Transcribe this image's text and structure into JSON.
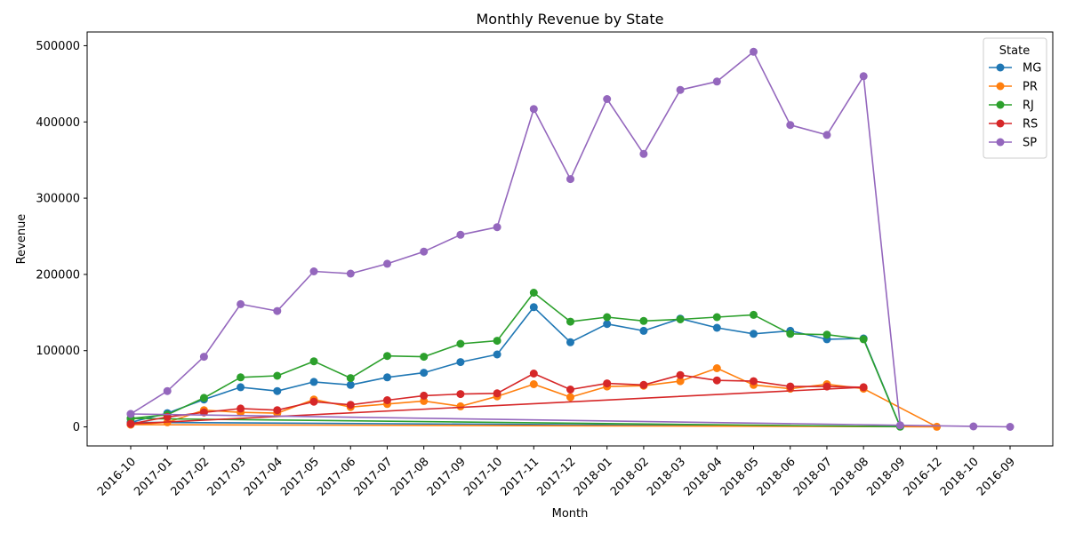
{
  "chart_data": {
    "type": "line",
    "title": "Monthly Revenue by State",
    "xlabel": "Month",
    "ylabel": "Revenue",
    "ylim": [
      -25000,
      518000
    ],
    "yticks": [
      0,
      100000,
      200000,
      300000,
      400000,
      500000
    ],
    "grid": false,
    "legend": {
      "title": "State",
      "position": "top-right"
    },
    "categories": [
      "2016-10",
      "2017-01",
      "2017-02",
      "2017-03",
      "2017-04",
      "2017-05",
      "2017-06",
      "2017-07",
      "2017-08",
      "2017-09",
      "2017-10",
      "2017-11",
      "2017-12",
      "2018-01",
      "2018-02",
      "2018-03",
      "2018-04",
      "2018-05",
      "2018-06",
      "2018-07",
      "2018-08",
      "2018-09",
      "2016-12",
      "2018-10",
      "2016-09"
    ],
    "series": [
      {
        "name": "MG",
        "color": "#1f77b4",
        "points": [
          [
            "2016-10",
            6000
          ],
          [
            "2017-01",
            18000
          ],
          [
            "2017-02",
            36000
          ],
          [
            "2017-03",
            52000
          ],
          [
            "2017-04",
            47000
          ],
          [
            "2017-05",
            59000
          ],
          [
            "2017-06",
            55000
          ],
          [
            "2017-07",
            65000
          ],
          [
            "2017-08",
            71000
          ],
          [
            "2017-09",
            85000
          ],
          [
            "2017-10",
            95000
          ],
          [
            "2017-11",
            157000
          ],
          [
            "2017-12",
            111000
          ],
          [
            "2018-01",
            135000
          ],
          [
            "2018-02",
            126000
          ],
          [
            "2018-03",
            142000
          ],
          [
            "2018-04",
            130000
          ],
          [
            "2018-05",
            122000
          ],
          [
            "2018-06",
            126000
          ],
          [
            "2018-07",
            115000
          ],
          [
            "2018-08",
            116000
          ],
          [
            "2018-09",
            500
          ],
          [
            "2016-10",
            6000
          ]
        ]
      },
      {
        "name": "PR",
        "color": "#ff7f0e",
        "points": [
          [
            "2016-10",
            3000
          ],
          [
            "2017-01",
            6000
          ],
          [
            "2017-02",
            22000
          ],
          [
            "2017-03",
            19000
          ],
          [
            "2017-04",
            18000
          ],
          [
            "2017-05",
            36000
          ],
          [
            "2017-06",
            26000
          ],
          [
            "2017-07",
            30000
          ],
          [
            "2017-08",
            34000
          ],
          [
            "2017-09",
            27000
          ],
          [
            "2017-10",
            40000
          ],
          [
            "2017-11",
            56000
          ],
          [
            "2017-12",
            39000
          ],
          [
            "2018-01",
            53000
          ],
          [
            "2018-02",
            54000
          ],
          [
            "2018-03",
            60000
          ],
          [
            "2018-04",
            77000
          ],
          [
            "2018-05",
            55000
          ],
          [
            "2018-06",
            50000
          ],
          [
            "2018-07",
            56000
          ],
          [
            "2018-08",
            50000
          ],
          [
            "2016-12",
            200
          ],
          [
            "2016-10",
            3000
          ]
        ]
      },
      {
        "name": "RJ",
        "color": "#2ca02c",
        "points": [
          [
            "2016-10",
            11000
          ],
          [
            "2017-01",
            16000
          ],
          [
            "2017-02",
            38000
          ],
          [
            "2017-03",
            65000
          ],
          [
            "2017-04",
            67000
          ],
          [
            "2017-05",
            86000
          ],
          [
            "2017-06",
            64000
          ],
          [
            "2017-07",
            93000
          ],
          [
            "2017-08",
            92000
          ],
          [
            "2017-09",
            109000
          ],
          [
            "2017-10",
            113000
          ],
          [
            "2017-11",
            176000
          ],
          [
            "2017-12",
            138000
          ],
          [
            "2018-01",
            144000
          ],
          [
            "2018-02",
            139000
          ],
          [
            "2018-03",
            141000
          ],
          [
            "2018-04",
            144000
          ],
          [
            "2018-05",
            147000
          ],
          [
            "2018-06",
            122000
          ],
          [
            "2018-07",
            121000
          ],
          [
            "2018-08",
            115000
          ],
          [
            "2018-09",
            300
          ],
          [
            "2016-10",
            11000
          ]
        ]
      },
      {
        "name": "RS",
        "color": "#d62728",
        "points": [
          [
            "2016-10",
            4000
          ],
          [
            "2017-01",
            13000
          ],
          [
            "2017-02",
            19000
          ],
          [
            "2017-03",
            24000
          ],
          [
            "2017-04",
            22000
          ],
          [
            "2017-05",
            33000
          ],
          [
            "2017-06",
            29000
          ],
          [
            "2017-07",
            35000
          ],
          [
            "2017-08",
            41000
          ],
          [
            "2017-09",
            43000
          ],
          [
            "2017-10",
            44000
          ],
          [
            "2017-11",
            70000
          ],
          [
            "2017-12",
            49000
          ],
          [
            "2018-01",
            57000
          ],
          [
            "2018-02",
            55000
          ],
          [
            "2018-03",
            68000
          ],
          [
            "2018-04",
            61000
          ],
          [
            "2018-05",
            60000
          ],
          [
            "2018-06",
            53000
          ],
          [
            "2018-07",
            53000
          ],
          [
            "2018-08",
            52000
          ],
          [
            "2016-10",
            4000
          ]
        ]
      },
      {
        "name": "SP",
        "color": "#9467bd",
        "points": [
          [
            "2016-10",
            17000
          ],
          [
            "2017-01",
            47000
          ],
          [
            "2017-02",
            92000
          ],
          [
            "2017-03",
            161000
          ],
          [
            "2017-04",
            152000
          ],
          [
            "2017-05",
            204000
          ],
          [
            "2017-06",
            201000
          ],
          [
            "2017-07",
            214000
          ],
          [
            "2017-08",
            230000
          ],
          [
            "2017-09",
            252000
          ],
          [
            "2017-10",
            262000
          ],
          [
            "2017-11",
            417000
          ],
          [
            "2017-12",
            325000
          ],
          [
            "2018-01",
            430000
          ],
          [
            "2018-02",
            358000
          ],
          [
            "2018-03",
            442000
          ],
          [
            "2018-04",
            453000
          ],
          [
            "2018-05",
            492000
          ],
          [
            "2018-06",
            396000
          ],
          [
            "2018-07",
            383000
          ],
          [
            "2018-08",
            460000
          ],
          [
            "2018-09",
            2000
          ],
          [
            "2018-10",
            600
          ],
          [
            "2016-09",
            100
          ],
          [
            "2016-10",
            17000
          ]
        ]
      }
    ]
  }
}
